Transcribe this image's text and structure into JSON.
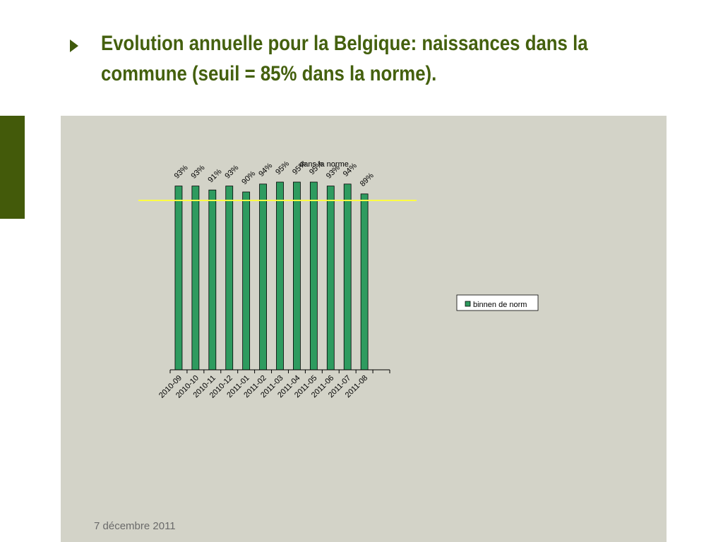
{
  "slide": {
    "title_lines": [
      "Evolution annuelle pour la Belgique: naissances dans la",
      "commune (seuil = 85% dans la norme)."
    ],
    "date": "7 décembre 2011",
    "accent_color": "#44600e"
  },
  "chart_data": {
    "type": "bar",
    "title": "dans la norme",
    "categories": [
      "2010-09",
      "2010-10",
      "2010-11",
      "2010-12",
      "2011-01",
      "2011-02",
      "2011-03",
      "2011-04",
      "2011-05",
      "2011-06",
      "2011-07",
      "2011-08"
    ],
    "series": [
      {
        "name": "binnen de norm",
        "values": [
          93,
          93,
          91,
          93,
          90,
          94,
          95,
          95,
          95,
          93,
          94,
          89
        ],
        "labels": [
          "93%",
          "93%",
          "91%",
          "93%",
          "90%",
          "94%",
          "95%",
          "95%",
          "95%",
          "93%",
          "94%",
          "89%"
        ],
        "color": "#2e9b5f"
      }
    ],
    "threshold": {
      "value": 85,
      "color": "#ffff44"
    },
    "ylim": [
      0,
      100
    ],
    "legend": "right",
    "grid": false,
    "background": "#d3d3c8"
  }
}
